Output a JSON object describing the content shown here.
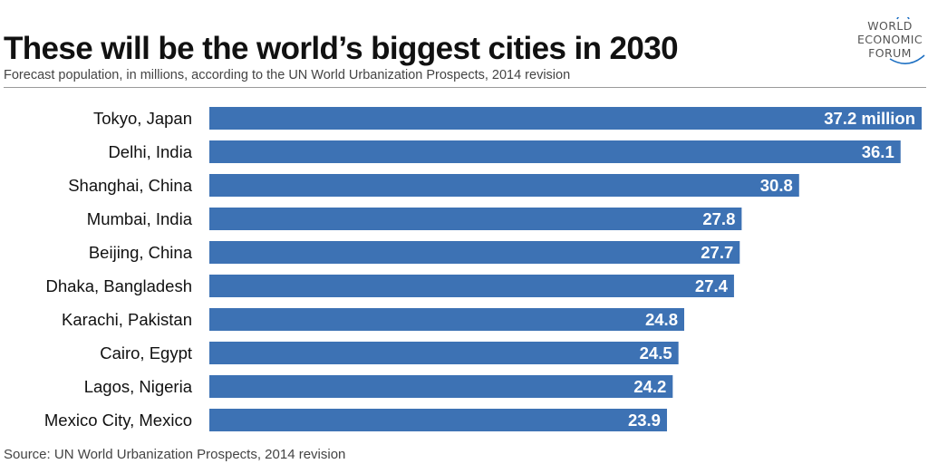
{
  "header": {
    "title": "These will be the world’s biggest cities in 2030",
    "subtitle": "Forecast population, in millions, according to the UN World Urbanization Prospects, 2014 revision"
  },
  "logo": {
    "line1": "WORLD",
    "line2": "ECONOMIC",
    "line3": "FORUM"
  },
  "footer": {
    "source": "Source: UN World Urbanization Prospects, 2014 revision"
  },
  "colors": {
    "bar": "#3d72b4",
    "bar_label": "#ffffff",
    "logo_accent": "#1d6fc2"
  },
  "chart_data": {
    "type": "bar",
    "orientation": "horizontal",
    "categories": [
      "Tokyo, Japan",
      "Delhi, India",
      "Shanghai, China",
      "Mumbai, India",
      "Beijing, China",
      "Dhaka, Bangladesh",
      "Karachi, Pakistan",
      "Cairo, Egypt",
      "Lagos, Nigeria",
      "Mexico City, Mexico"
    ],
    "values": [
      37.2,
      36.1,
      30.8,
      27.8,
      27.7,
      27.4,
      24.8,
      24.5,
      24.2,
      23.9
    ],
    "data_labels": [
      "37.2 million",
      "36.1",
      "30.8",
      "27.8",
      "27.7",
      "27.4",
      "24.8",
      "24.5",
      "24.2",
      "23.9"
    ],
    "title": "These will be the world’s biggest cities in 2030",
    "xlabel": "",
    "ylabel": "",
    "xlim": [
      0,
      37.2
    ],
    "grid": false,
    "legend": "none"
  }
}
